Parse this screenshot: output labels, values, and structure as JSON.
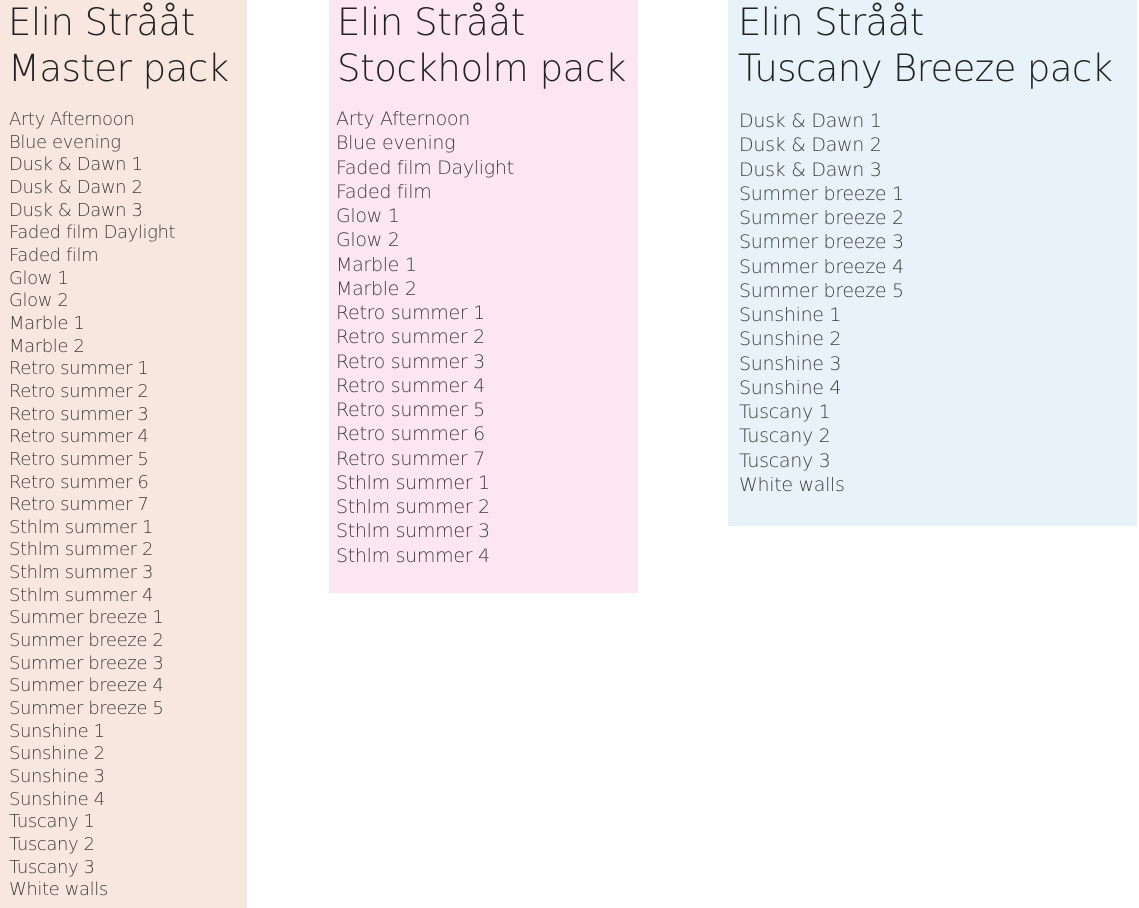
{
  "panels": {
    "master": {
      "title_line1": "Elin Strååt",
      "title_line2": "Master pack",
      "background": "#f8e7de",
      "items": [
        "Arty Afternoon",
        "Blue evening",
        "Dusk & Dawn 1",
        "Dusk & Dawn 2",
        "Dusk & Dawn 3",
        "Faded film Daylight",
        "Faded film",
        "Glow 1",
        "Glow 2",
        "Marble 1",
        "Marble 2",
        "Retro summer 1",
        "Retro summer 2",
        "Retro summer 3",
        "Retro summer 4",
        "Retro summer 5",
        "Retro summer 6",
        "Retro summer 7",
        "Sthlm summer 1",
        "Sthlm summer 2",
        "Sthlm summer 3",
        "Sthlm summer 4",
        "Summer breeze 1",
        "Summer breeze 2",
        "Summer breeze 3",
        "Summer breeze 4",
        "Summer breeze 5",
        "Sunshine 1",
        "Sunshine 2",
        "Sunshine 3",
        "Sunshine 4",
        "Tuscany 1",
        "Tuscany 2",
        "Tuscany 3",
        "White walls"
      ]
    },
    "stockholm": {
      "title_line1": "Elin Strååt",
      "title_line2": "Stockholm pack",
      "background": "#fbe6f2",
      "items": [
        "Arty Afternoon",
        "Blue evening",
        "Faded film Daylight",
        "Faded film",
        "Glow 1",
        "Glow 2",
        "Marble 1",
        "Marble 2",
        "Retro summer 1",
        "Retro summer 2",
        "Retro summer 3",
        "Retro summer 4",
        "Retro summer 5",
        "Retro summer 6",
        "Retro summer 7",
        "Sthlm summer 1",
        "Sthlm summer 2",
        "Sthlm summer 3",
        "Sthlm summer 4"
      ]
    },
    "tuscany": {
      "title_line1": "Elin Strååt",
      "title_line2": "Tuscany Breeze pack",
      "background": "#e7f2f9",
      "items": [
        "Dusk & Dawn 1",
        "Dusk & Dawn 2",
        "Dusk & Dawn 3",
        "Summer breeze 1",
        "Summer breeze 2",
        "Summer breeze 3",
        "Summer breeze 4",
        "Summer breeze 5",
        "Sunshine 1",
        "Sunshine 2",
        "Sunshine 3",
        "Sunshine 4",
        "Tuscany 1",
        "Tuscany 2",
        "Tuscany 3",
        "White walls"
      ]
    }
  }
}
